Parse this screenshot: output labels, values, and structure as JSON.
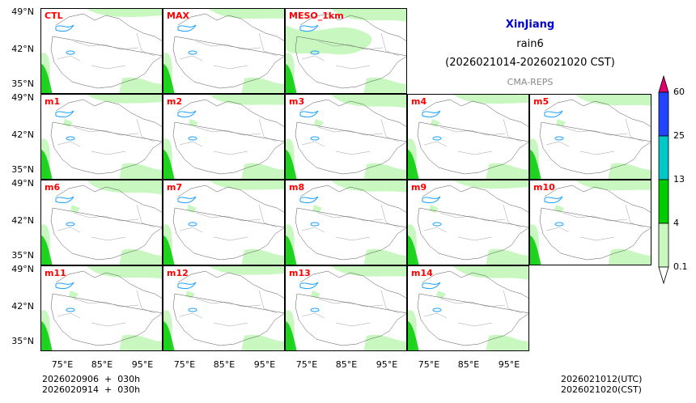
{
  "title": {
    "region": "XinJiang",
    "variable": "rain6",
    "period": "(2026021014-2026021020 CST)",
    "model": "CMA-REPS"
  },
  "panels": [
    {
      "label": "CTL"
    },
    {
      "label": "MAX"
    },
    {
      "label": "MESO_1km"
    },
    {
      "label": "m1"
    },
    {
      "label": "m2"
    },
    {
      "label": "m3"
    },
    {
      "label": "m4"
    },
    {
      "label": "m5"
    },
    {
      "label": "m6"
    },
    {
      "label": "m7"
    },
    {
      "label": "m8"
    },
    {
      "label": "m9"
    },
    {
      "label": "m10"
    },
    {
      "label": "m11"
    },
    {
      "label": "m12"
    },
    {
      "label": "m13"
    },
    {
      "label": "m14"
    }
  ],
  "axes": {
    "lat_ticks": [
      "49°N",
      "42°N",
      "35°N"
    ],
    "lon_ticks": [
      "75°E",
      "85°E",
      "95°E"
    ]
  },
  "colorbar": {
    "levels": [
      "0.1",
      "4",
      "13",
      "25",
      "60"
    ],
    "colors": [
      "#c8f8c0",
      "#00cc00",
      "#00c8c8",
      "#2244ff",
      "#e0006e"
    ]
  },
  "footer": {
    "init_line1": "2026020906  +  030h",
    "init_line2": "2026020914  +  030h",
    "valid_utc": "2026021012(UTC)",
    "valid_cst": "2026021020(CST)"
  }
}
